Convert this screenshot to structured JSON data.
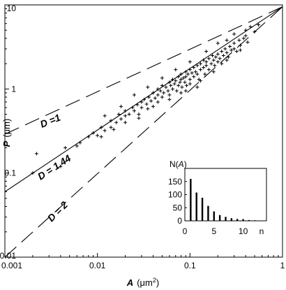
{
  "chart_data": {
    "type": "scatter",
    "x_scale": "log",
    "y_scale": "log",
    "xlim": [
      0.001,
      1
    ],
    "ylim": [
      0.01,
      10
    ],
    "x_ticks": [
      "0.001",
      "0.01",
      "0.1",
      "1"
    ],
    "y_ticks": [
      "10",
      "1",
      "0.1",
      "0.01"
    ],
    "xlabel": {
      "symbol": "A",
      "unit_prefix": "(μm",
      "unit_power": "2",
      "unit_suffix": ")"
    },
    "ylabel": {
      "symbol": "P",
      "unit": "(μm)"
    },
    "grid": false,
    "lines": [
      {
        "label": "D =1",
        "style": "dashed",
        "points": [
          [
            0.001,
            0.29
          ],
          [
            1,
            9.5
          ]
        ]
      },
      {
        "label": "D  =  1.44",
        "style": "solid",
        "points": [
          [
            0.001,
            0.06
          ],
          [
            1,
            9.5
          ]
        ]
      },
      {
        "label": "D = 2",
        "style": "dashed",
        "points": [
          [
            0.001,
            0.01
          ],
          [
            1,
            9.5
          ]
        ]
      }
    ],
    "scatter_marker": "+",
    "scatter": [
      [
        0.002,
        0.1
      ],
      [
        0.0022,
        0.17
      ],
      [
        0.004,
        0.12
      ],
      [
        0.0045,
        0.2
      ],
      [
        0.006,
        0.21
      ],
      [
        0.0065,
        0.23
      ],
      [
        0.008,
        0.27
      ],
      [
        0.009,
        0.3
      ],
      [
        0.01,
        0.28
      ],
      [
        0.011,
        0.35
      ],
      [
        0.012,
        0.32
      ],
      [
        0.014,
        0.35
      ],
      [
        0.014,
        0.42
      ],
      [
        0.016,
        0.4
      ],
      [
        0.017,
        0.5
      ],
      [
        0.018,
        0.44
      ],
      [
        0.02,
        0.48
      ],
      [
        0.02,
        0.55
      ],
      [
        0.022,
        0.5
      ],
      [
        0.024,
        0.6
      ],
      [
        0.025,
        0.55
      ],
      [
        0.027,
        0.65
      ],
      [
        0.028,
        0.5
      ],
      [
        0.03,
        0.6
      ],
      [
        0.03,
        0.7
      ],
      [
        0.032,
        0.75
      ],
      [
        0.034,
        0.66
      ],
      [
        0.036,
        0.8
      ],
      [
        0.038,
        0.72
      ],
      [
        0.04,
        0.9
      ],
      [
        0.04,
        0.62
      ],
      [
        0.042,
        0.78
      ],
      [
        0.045,
        0.85
      ],
      [
        0.045,
        1.0
      ],
      [
        0.048,
        0.95
      ],
      [
        0.05,
        0.8
      ],
      [
        0.05,
        1.1
      ],
      [
        0.052,
        0.9
      ],
      [
        0.055,
        1.05
      ],
      [
        0.058,
        0.95
      ],
      [
        0.06,
        1.2
      ],
      [
        0.06,
        0.85
      ],
      [
        0.062,
        1.1
      ],
      [
        0.065,
        1.3
      ],
      [
        0.065,
        1.0
      ],
      [
        0.068,
        1.15
      ],
      [
        0.07,
        1.25
      ],
      [
        0.072,
        0.95
      ],
      [
        0.075,
        1.4
      ],
      [
        0.075,
        1.1
      ],
      [
        0.078,
        1.2
      ],
      [
        0.08,
        1.3
      ],
      [
        0.08,
        1.5
      ],
      [
        0.082,
        1.05
      ],
      [
        0.085,
        1.35
      ],
      [
        0.088,
        1.2
      ],
      [
        0.09,
        1.6
      ],
      [
        0.09,
        1.4
      ],
      [
        0.092,
        1.1
      ],
      [
        0.095,
        1.5
      ],
      [
        0.1,
        1.7
      ],
      [
        0.1,
        1.3
      ],
      [
        0.1,
        1.15
      ],
      [
        0.105,
        1.55
      ],
      [
        0.11,
        1.8
      ],
      [
        0.11,
        1.4
      ],
      [
        0.115,
        1.6
      ],
      [
        0.12,
        1.9
      ],
      [
        0.12,
        1.5
      ],
      [
        0.125,
        1.3
      ],
      [
        0.13,
        2.0
      ],
      [
        0.13,
        1.7
      ],
      [
        0.14,
        1.8
      ],
      [
        0.14,
        2.2
      ],
      [
        0.145,
        1.5
      ],
      [
        0.15,
        2.1
      ],
      [
        0.15,
        1.9
      ],
      [
        0.16,
        2.3
      ],
      [
        0.16,
        1.7
      ],
      [
        0.17,
        2.0
      ],
      [
        0.175,
        2.5
      ],
      [
        0.18,
        2.2
      ],
      [
        0.185,
        1.9
      ],
      [
        0.19,
        2.4
      ],
      [
        0.2,
        2.6
      ],
      [
        0.2,
        2.1
      ],
      [
        0.21,
        2.3
      ],
      [
        0.22,
        2.8
      ],
      [
        0.22,
        2.0
      ],
      [
        0.23,
        2.5
      ],
      [
        0.24,
        3.0
      ],
      [
        0.25,
        2.7
      ],
      [
        0.26,
        2.4
      ],
      [
        0.27,
        3.2
      ],
      [
        0.28,
        2.9
      ],
      [
        0.3,
        3.5
      ],
      [
        0.3,
        3.0
      ],
      [
        0.32,
        2.8
      ],
      [
        0.34,
        3.8
      ],
      [
        0.35,
        3.3
      ],
      [
        0.38,
        4.0
      ],
      [
        0.4,
        4.3
      ],
      [
        0.42,
        3.6
      ],
      [
        0.45,
        5.5
      ],
      [
        0.5,
        4.8
      ],
      [
        0.55,
        5.8
      ],
      [
        0.2,
        3.5
      ],
      [
        0.15,
        2.8
      ],
      [
        0.1,
        2.1
      ],
      [
        0.07,
        1.7
      ],
      [
        0.05,
        1.35
      ],
      [
        0.035,
        1.05
      ],
      [
        0.025,
        0.85
      ],
      [
        0.018,
        0.62
      ],
      [
        0.012,
        0.48
      ],
      [
        0.3,
        4.5
      ],
      [
        0.25,
        3.8
      ],
      [
        0.4,
        5.0
      ],
      [
        0.12,
        1.05
      ],
      [
        0.08,
        0.9
      ],
      [
        0.06,
        0.75
      ],
      [
        0.045,
        0.7
      ],
      [
        0.035,
        0.58
      ],
      [
        0.028,
        0.45
      ],
      [
        0.02,
        0.4
      ],
      [
        0.015,
        0.33
      ],
      [
        0.011,
        0.27
      ],
      [
        0.18,
        1.6
      ],
      [
        0.25,
        2.2
      ],
      [
        0.35,
        2.9
      ],
      [
        0.13,
        1.25
      ],
      [
        0.09,
        0.95
      ]
    ],
    "inset": {
      "type": "bar",
      "ylabel_symbol": "N(",
      "ylabel_var": "A",
      "ylabel_close": ")",
      "xlabel": "n",
      "ylim": [
        0,
        200
      ],
      "xlim": [
        0,
        14
      ],
      "y_ticks": [
        "150",
        "100",
        "50",
        "0"
      ],
      "x_ticks": [
        "0",
        "5",
        "10"
      ],
      "categories": [
        1,
        2,
        3,
        4,
        5,
        6,
        7,
        8,
        9,
        10,
        11,
        12
      ],
      "values": [
        160,
        108,
        88,
        57,
        36,
        22,
        15,
        10,
        7,
        5,
        3,
        2
      ]
    }
  }
}
